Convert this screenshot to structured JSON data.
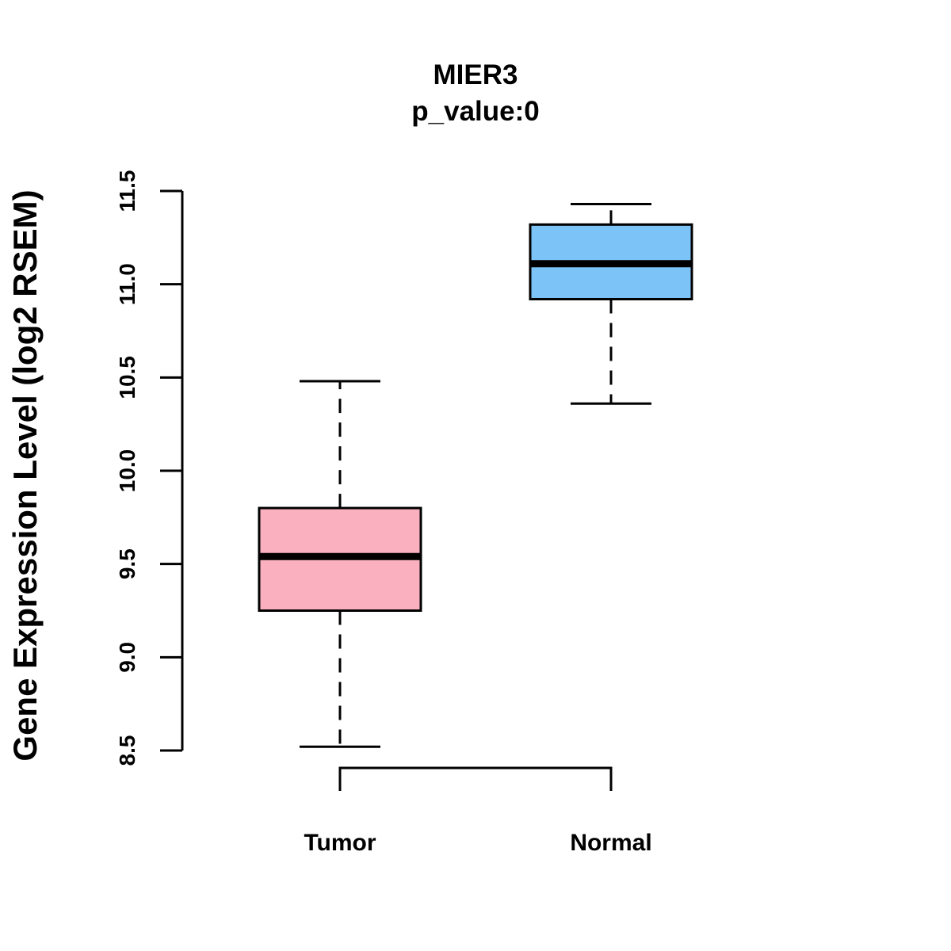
{
  "chart_data": {
    "type": "boxplot",
    "title": "MIER3",
    "subtitle": "p_value:0",
    "xlabel": "",
    "ylabel": "Gene Expression Level (log2 RSEM)",
    "ylim": [
      8.5,
      11.5
    ],
    "yticks": [
      8.5,
      9.0,
      9.5,
      10.0,
      10.5,
      11.0,
      11.5
    ],
    "ytick_labels": [
      "8.5",
      "9.0",
      "9.5",
      "10.0",
      "10.5",
      "11.0",
      "11.5"
    ],
    "grid": false,
    "categories": [
      "Tumor",
      "Normal"
    ],
    "boxes": [
      {
        "name": "Tumor",
        "color": "#FBB0C0",
        "whisker_low": 8.52,
        "q1": 9.25,
        "median": 9.54,
        "q3": 9.8,
        "whisker_high": 10.48
      },
      {
        "name": "Normal",
        "color": "#7CC3F7",
        "whisker_low": 10.36,
        "q1": 10.92,
        "median": 11.11,
        "q3": 11.32,
        "whisker_high": 11.43
      }
    ],
    "comparison_bracket": [
      "Tumor",
      "Normal"
    ]
  }
}
